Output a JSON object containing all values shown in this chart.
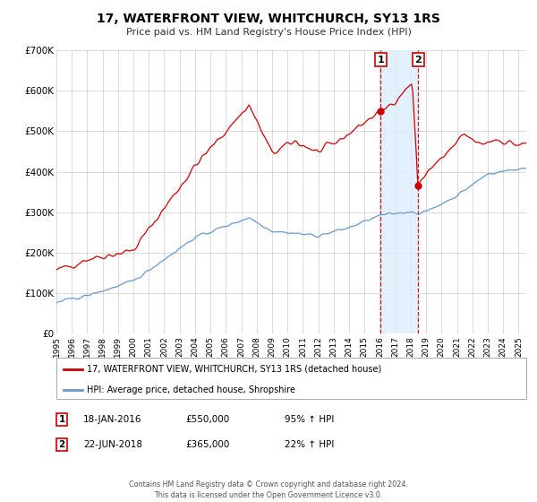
{
  "title": "17, WATERFRONT VIEW, WHITCHURCH, SY13 1RS",
  "subtitle": "Price paid vs. HM Land Registry's House Price Index (HPI)",
  "legend_entry1": "17, WATERFRONT VIEW, WHITCHURCH, SY13 1RS (detached house)",
  "legend_entry2": "HPI: Average price, detached house, Shropshire",
  "sale1_date": "18-JAN-2016",
  "sale1_price": 550000,
  "sale1_pct": "95%",
  "sale2_date": "22-JUN-2018",
  "sale2_price": 365000,
  "sale2_pct": "22%",
  "footnote1": "Contains HM Land Registry data © Crown copyright and database right 2024.",
  "footnote2": "This data is licensed under the Open Government Licence v3.0.",
  "red_color": "#cc0000",
  "blue_color": "#6699cc",
  "shade_color": "#ddeeff",
  "background_color": "#ffffff",
  "grid_color": "#cccccc",
  "ylim": [
    0,
    700000
  ],
  "yticks": [
    0,
    100000,
    200000,
    300000,
    400000,
    500000,
    600000,
    700000
  ],
  "ytick_labels": [
    "£0",
    "£100K",
    "£200K",
    "£300K",
    "£400K",
    "£500K",
    "£600K",
    "£700K"
  ],
  "sale1_year": 2016.05,
  "sale2_year": 2018.48,
  "xlim_left": 1995,
  "xlim_right": 2025.5
}
